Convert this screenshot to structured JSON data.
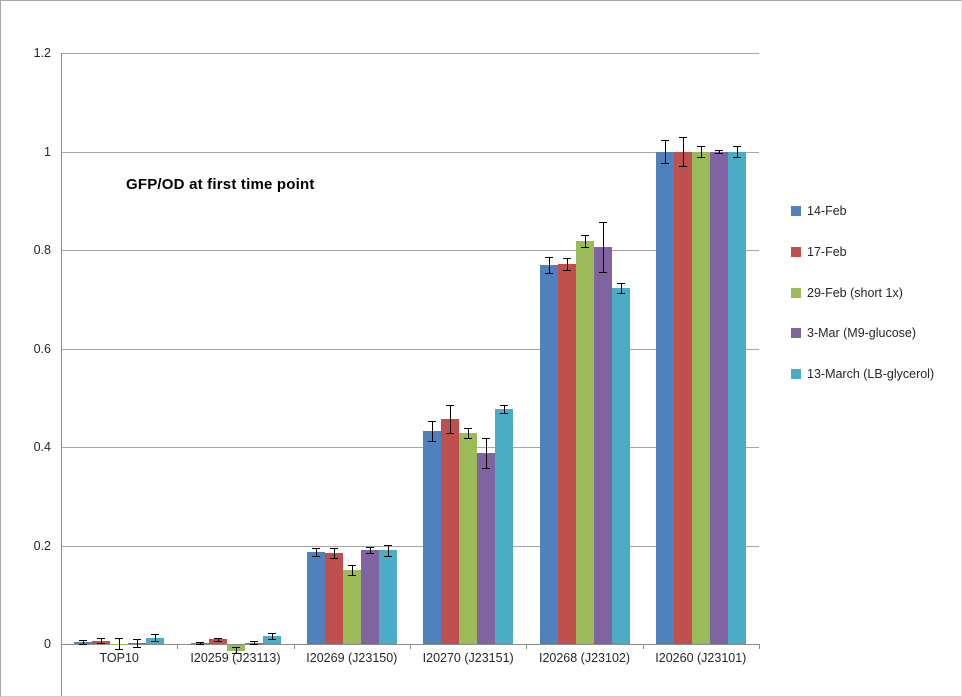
{
  "window": {
    "background": "#FFFFFF",
    "border_color": "#A6A6A6"
  },
  "chart_data": {
    "type": "bar",
    "title": "GFP/OD at first time point",
    "xlabel": "",
    "ylabel": "",
    "ylim": [
      0,
      1.2
    ],
    "ytick_step": 0.2,
    "yticks": [
      "0",
      "0.2",
      "0.4",
      "0.6",
      "0.8",
      "1",
      "1.2"
    ],
    "grid": true,
    "gridline_color": "#A6A6A6",
    "axis_color": "#8C8C8C",
    "error_bars": true,
    "legend_position": "right",
    "categories": [
      "TOP10",
      "I20259 (J23113)",
      "I20269 (J23150)",
      "I20270 (J23151)",
      "I20268 (J23102)",
      "I20260 (J23101)"
    ],
    "series": [
      {
        "name": "14-Feb",
        "color": "#4F81BD",
        "values": [
          0.004,
          0.002,
          0.186,
          0.432,
          0.77,
          1.0
        ],
        "errors": [
          0.004,
          0.002,
          0.008,
          0.02,
          0.016,
          0.024
        ]
      },
      {
        "name": "17-Feb",
        "color": "#C0504D",
        "values": [
          0.007,
          0.01,
          0.185,
          0.457,
          0.772,
          1.0
        ],
        "errors": [
          0.005,
          0.003,
          0.01,
          0.028,
          0.012,
          0.03
        ]
      },
      {
        "name": "29-Feb (short 1x)",
        "color": "#9BBB59",
        "values": [
          0.001,
          -0.013,
          0.15,
          0.428,
          0.818,
          1.0
        ],
        "errors": [
          0.011,
          0.006,
          0.01,
          0.01,
          0.012,
          0.012
        ]
      },
      {
        "name": "3-Mar (M9-glucose)",
        "color": "#8064A2",
        "values": [
          0.002,
          0.003,
          0.19,
          0.388,
          0.806,
          1.0
        ],
        "errors": [
          0.009,
          0.003,
          0.006,
          0.03,
          0.05,
          0.004
        ]
      },
      {
        "name": "13-March (LB-glycerol)",
        "color": "#4BACC6",
        "values": [
          0.013,
          0.016,
          0.19,
          0.477,
          0.723,
          1.0
        ],
        "errors": [
          0.007,
          0.006,
          0.012,
          0.008,
          0.01,
          0.012
        ]
      }
    ]
  }
}
